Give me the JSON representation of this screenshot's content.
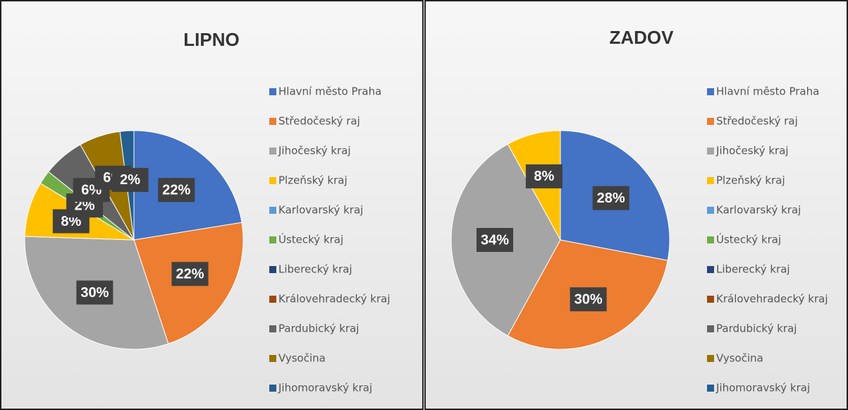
{
  "chart_data": [
    {
      "type": "pie",
      "title": "LIPNO",
      "categories": [
        "Hlavní město Praha",
        "Středočeský raj",
        "Jihočeský kraj",
        "Plzeňský kraj",
        "Karlovarský kraj",
        "Ústecký kraj",
        "Liberecký kraj",
        "Královehradecký kraj",
        "Pardubický kraj",
        "Vysočina",
        "Jihomoravský kraj"
      ],
      "values": [
        22,
        22,
        30,
        8,
        0,
        2,
        0,
        0,
        6,
        6,
        2
      ],
      "value_labels": [
        "22%",
        "22%",
        "30%",
        "8%",
        null,
        "2%",
        null,
        null,
        "6%",
        "6%",
        "2%"
      ],
      "colors": [
        "#4472c4",
        "#ed7d31",
        "#a5a5a5",
        "#ffc000",
        "#5b9bd5",
        "#70ad47",
        "#264478",
        "#9e480e",
        "#636363",
        "#997300",
        "#255e91"
      ]
    },
    {
      "type": "pie",
      "title": "ZADOV",
      "categories": [
        "Hlavní město Praha",
        "Středočeský raj",
        "Jihočeský kraj",
        "Plzeňský kraj",
        "Karlovarský kraj",
        "Ústecký kraj",
        "Liberecký kraj",
        "Královehradecký kraj",
        "Pardubický kraj",
        "Vysočina",
        "Jihomoravský kraj"
      ],
      "values": [
        28,
        30,
        34,
        8,
        0,
        0,
        0,
        0,
        0,
        0,
        0
      ],
      "value_labels": [
        "28%",
        "30%",
        "34%",
        "8%",
        null,
        null,
        null,
        null,
        null,
        null,
        null
      ],
      "colors": [
        "#4472c4",
        "#ed7d31",
        "#a5a5a5",
        "#ffc000",
        "#5b9bd5",
        "#70ad47",
        "#264478",
        "#9e480e",
        "#636363",
        "#997300",
        "#255e91"
      ]
    }
  ]
}
